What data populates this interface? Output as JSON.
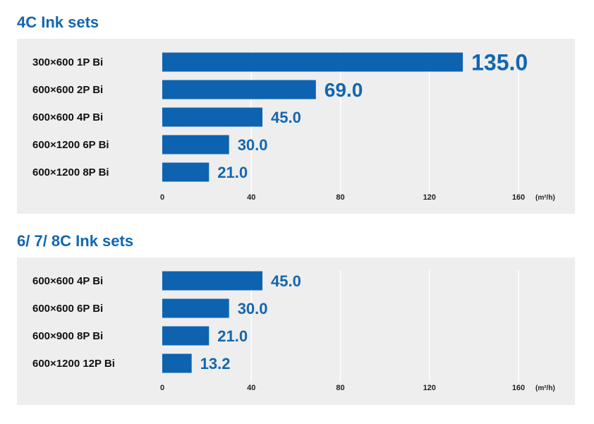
{
  "chart_data": [
    {
      "type": "bar",
      "orientation": "horizontal",
      "title": "4C Ink sets",
      "categories": [
        "300×600 1P Bi",
        "600×600 2P Bi",
        "600×600 4P Bi",
        "600×1200 6P Bi",
        "600×1200 8P Bi"
      ],
      "values": [
        135.0,
        69.0,
        45.0,
        30.0,
        21.0
      ],
      "value_labels": [
        "135.0",
        "69.0",
        "45.0",
        "30.0",
        "21.0"
      ],
      "xticks": [
        "0",
        "40",
        "80",
        "120",
        "160"
      ],
      "xunit": "(m²/h)",
      "xlim": [
        0,
        160
      ],
      "grid": true,
      "bar_color": "#0d63b0",
      "label_color": "#1266b0"
    },
    {
      "type": "bar",
      "orientation": "horizontal",
      "title": "6/ 7/ 8C Ink sets",
      "categories": [
        "600×600 4P Bi",
        "600×600 6P Bi",
        "600×900 8P Bi",
        "600×1200 12P Bi"
      ],
      "values": [
        45.0,
        30.0,
        21.0,
        13.2
      ],
      "value_labels": [
        "45.0",
        "30.0",
        "21.0",
        "13.2"
      ],
      "xticks": [
        "0",
        "40",
        "80",
        "120",
        "160"
      ],
      "xunit": "(m²/h)",
      "xlim": [
        0,
        160
      ],
      "grid": true,
      "bar_color": "#0d63b0",
      "label_color": "#1266b0"
    }
  ]
}
